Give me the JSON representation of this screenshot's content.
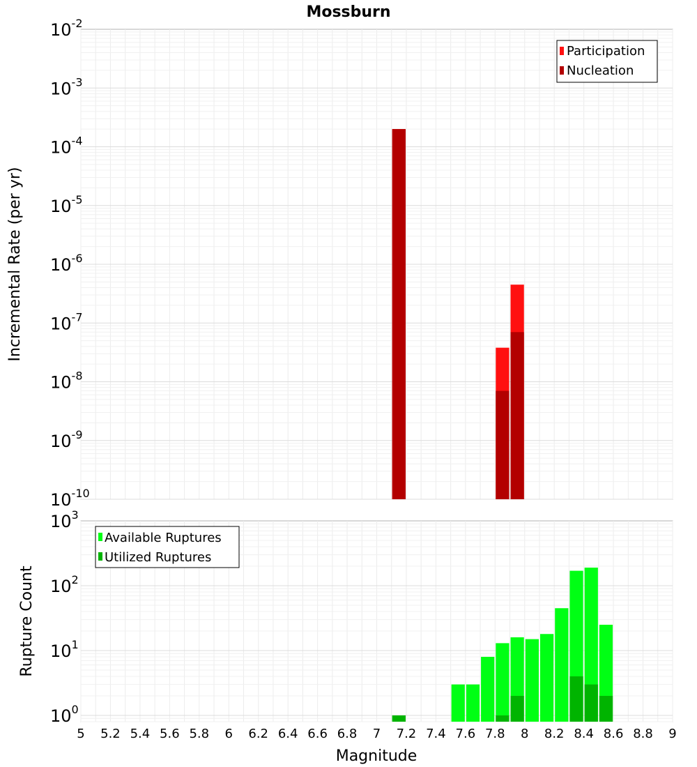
{
  "chart_data": [
    {
      "type": "bar",
      "title": "Mossburn",
      "ylabel": "Incremental Rate (per yr)",
      "xlabel": "",
      "y_scale": "log",
      "ylim": [
        1e-10,
        0.01
      ],
      "xlim": [
        5,
        9
      ],
      "bar_width": 0.1,
      "grid": true,
      "legend_position": "top-right",
      "ytick_labels": [
        {
          "value": 1e-10,
          "base": "10",
          "exp": "-10"
        },
        {
          "value": 1e-09,
          "base": "10",
          "exp": "-9"
        },
        {
          "value": 1e-08,
          "base": "10",
          "exp": "-8"
        },
        {
          "value": 1e-07,
          "base": "10",
          "exp": "-7"
        },
        {
          "value": 1e-06,
          "base": "10",
          "exp": "-6"
        },
        {
          "value": 1e-05,
          "base": "10",
          "exp": "-5"
        },
        {
          "value": 0.0001,
          "base": "10",
          "exp": "-4"
        },
        {
          "value": 0.001,
          "base": "10",
          "exp": "-3"
        },
        {
          "value": 0.01,
          "base": "10",
          "exp": "-2"
        }
      ],
      "series": [
        {
          "name": "Participation",
          "color": "#ff1010",
          "x": [
            7.15,
            7.85,
            7.95
          ],
          "values": [
            0.0002,
            3.8e-08,
            4.5e-07
          ]
        },
        {
          "name": "Nucleation",
          "color": "#b30000",
          "x": [
            7.15,
            7.85,
            7.95
          ],
          "values": [
            0.0002,
            7e-09,
            7e-08
          ]
        }
      ]
    },
    {
      "type": "bar",
      "title": "",
      "ylabel": "Rupture Count",
      "xlabel": "Magnitude",
      "y_scale": "log",
      "ylim": [
        0.8,
        1000
      ],
      "xlim": [
        5,
        9
      ],
      "bar_width": 0.1,
      "grid": true,
      "legend_position": "top-left",
      "xtick_labels": [
        "5",
        "5.2",
        "5.4",
        "5.6",
        "5.8",
        "6",
        "6.2",
        "6.4",
        "6.6",
        "6.8",
        "7",
        "7.2",
        "7.4",
        "7.6",
        "7.8",
        "8",
        "8.2",
        "8.4",
        "8.6",
        "8.8",
        "9"
      ],
      "ytick_labels": [
        {
          "value": 1,
          "base": "10",
          "exp": "0"
        },
        {
          "value": 10,
          "base": "10",
          "exp": "1"
        },
        {
          "value": 100,
          "base": "10",
          "exp": "2"
        },
        {
          "value": 1000,
          "base": "10",
          "exp": "3"
        }
      ],
      "series": [
        {
          "name": "Available Ruptures",
          "color": "#00ff14",
          "x": [
            7.15,
            7.55,
            7.65,
            7.75,
            7.85,
            7.95,
            8.05,
            8.15,
            8.25,
            8.35,
            8.45,
            8.55
          ],
          "values": [
            1,
            3,
            3,
            8,
            13,
            16,
            15,
            18,
            45,
            170,
            190,
            25
          ]
        },
        {
          "name": "Utilized Ruptures",
          "color": "#00b400",
          "x": [
            7.15,
            7.85,
            7.95,
            8.35,
            8.45,
            8.55
          ],
          "values": [
            1,
            1,
            2,
            4,
            3,
            2
          ]
        }
      ]
    }
  ]
}
